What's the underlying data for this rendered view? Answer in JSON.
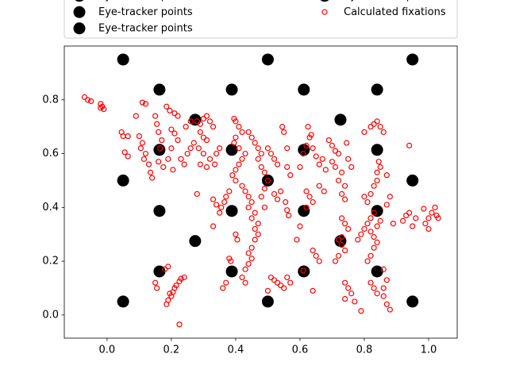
{
  "chart_data": {
    "type": "scatter",
    "xlim": [
      -0.133,
      1.089
    ],
    "ylim": [
      -0.086,
      1.0
    ],
    "xticks": [
      {
        "value": 0,
        "label": "0.0"
      },
      0.2,
      0.4,
      0.6,
      0.8,
      {
        "value": 1,
        "label": "1.0"
      }
    ],
    "yticks": [
      {
        "value": 0,
        "label": "0.0"
      },
      0.2,
      0.4,
      0.6,
      0.8
    ],
    "legend": "upper center",
    "legend_columns": 2,
    "series": [
      {
        "name": "Eye-tracker points",
        "color": "#000000",
        "filled": true,
        "x": [
          0.05,
          0.5,
          0.95,
          0.05,
          0.5,
          0.95,
          0.05,
          0.5,
          0.95
        ],
        "y": [
          0.95,
          0.95,
          0.95,
          0.5,
          0.5,
          0.5,
          0.05,
          0.05,
          0.05
        ]
      },
      {
        "name": "Eye-tracker points",
        "color": "#000000",
        "filled": true,
        "x": [
          0.163,
          0.388,
          0.612,
          0.84,
          0.163,
          0.388,
          0.612,
          0.84
        ],
        "y": [
          0.838,
          0.838,
          0.838,
          0.838,
          0.162,
          0.162,
          0.162,
          0.162
        ]
      },
      {
        "name": "Eye-tracker points",
        "color": "#000000",
        "filled": true,
        "x": [
          0.163,
          0.388,
          0.612,
          0.84,
          0.163,
          0.388,
          0.612,
          0.84
        ],
        "y": [
          0.614,
          0.614,
          0.614,
          0.614,
          0.387,
          0.387,
          0.387,
          0.387
        ]
      },
      {
        "name": "Eye-tracker points",
        "color": "#000000",
        "filled": true,
        "x": [
          0.274,
          0.726,
          0.274,
          0.726
        ],
        "y": [
          0.726,
          0.726,
          0.275,
          0.275
        ]
      },
      {
        "name": "Calculated fixations",
        "color": "#ff0000",
        "filled": false,
        "x": [
          -0.07,
          -0.06,
          -0.05,
          -0.02,
          -0.015,
          -0.01,
          -0.02,
          0.045,
          0.05,
          0.065,
          0.055,
          0.065,
          0.09,
          0.11,
          0.12,
          0.1,
          0.11,
          0.105,
          0.12,
          0.115,
          0.13,
          0.135,
          0.14,
          0.15,
          0.155,
          0.16,
          0.17,
          0.165,
          0.16,
          0.175,
          0.185,
          0.195,
          0.21,
          0.22,
          0.2,
          0.21,
          0.22,
          0.2,
          0.19,
          0.205,
          0.23,
          0.24,
          0.25,
          0.26,
          0.245,
          0.26,
          0.18,
          0.19,
          0.15,
          0.155,
          0.185,
          0.19,
          0.2,
          0.205,
          0.21,
          0.215,
          0.225,
          0.23,
          0.24,
          0.195,
          0.225,
          0.28,
          0.29,
          0.3,
          0.31,
          0.32,
          0.33,
          0.29,
          0.3,
          0.31,
          0.27,
          0.285,
          0.3,
          0.32,
          0.34,
          0.35,
          0.29,
          0.31,
          0.335,
          0.28,
          0.33,
          0.33,
          0.34,
          0.355,
          0.365,
          0.37,
          0.38,
          0.35,
          0.36,
          0.37,
          0.38,
          0.385,
          0.4,
          0.405,
          0.395,
          0.4,
          0.41,
          0.42,
          0.4,
          0.395,
          0.41,
          0.43,
          0.42,
          0.41,
          0.4,
          0.39,
          0.4,
          0.42,
          0.43,
          0.44,
          0.45,
          0.44,
          0.46,
          0.45,
          0.47,
          0.46,
          0.47,
          0.46,
          0.45,
          0.44,
          0.45,
          0.44,
          0.43,
          0.42,
          0.43,
          0.44,
          0.45,
          0.46,
          0.47,
          0.48,
          0.47,
          0.48,
          0.49,
          0.5,
          0.49,
          0.48,
          0.49,
          0.5,
          0.51,
          0.52,
          0.53,
          0.52,
          0.53,
          0.54,
          0.545,
          0.55,
          0.56,
          0.56,
          0.57,
          0.555,
          0.56,
          0.565,
          0.51,
          0.52,
          0.53,
          0.54,
          0.55,
          0.56,
          0.57,
          0.5,
          0.59,
          0.6,
          0.6,
          0.61,
          0.62,
          0.63,
          0.625,
          0.635,
          0.64,
          0.65,
          0.62,
          0.63,
          0.64,
          0.62,
          0.61,
          0.64,
          0.65,
          0.66,
          0.64,
          0.66,
          0.67,
          0.68,
          0.66,
          0.675,
          0.69,
          0.7,
          0.71,
          0.72,
          0.7,
          0.71,
          0.73,
          0.72,
          0.74,
          0.745,
          0.75,
          0.76,
          0.73,
          0.74,
          0.73,
          0.74,
          0.72,
          0.73,
          0.74,
          0.72,
          0.71,
          0.73,
          0.75,
          0.74,
          0.75,
          0.76,
          0.74,
          0.77,
          0.78,
          0.79,
          0.8,
          0.81,
          0.82,
          0.83,
          0.82,
          0.83,
          0.84,
          0.85,
          0.84,
          0.83,
          0.82,
          0.81,
          0.82,
          0.83,
          0.84,
          0.79,
          0.86,
          0.87,
          0.86,
          0.86,
          0.87,
          0.88,
          0.82,
          0.83,
          0.84,
          0.84,
          0.85,
          0.845,
          0.81,
          0.8,
          0.82,
          0.83,
          0.84,
          0.85,
          0.86,
          0.8,
          0.87,
          0.87,
          0.88,
          0.89,
          0.92,
          0.93,
          0.94,
          0.94,
          0.95,
          0.99,
          1.0,
          1.01,
          1.02,
          1.025,
          1.0,
          0.985,
          1.03,
          0.96
        ],
        "y": [
          0.81,
          0.8,
          0.795,
          0.785,
          0.775,
          0.765,
          0.77,
          0.68,
          0.665,
          0.665,
          0.605,
          0.59,
          0.74,
          0.79,
          0.785,
          0.665,
          0.64,
          0.62,
          0.6,
          0.58,
          0.56,
          0.53,
          0.51,
          0.74,
          0.71,
          0.68,
          0.65,
          0.62,
          0.57,
          0.55,
          0.775,
          0.76,
          0.75,
          0.74,
          0.69,
          0.675,
          0.65,
          0.62,
          0.58,
          0.54,
          0.58,
          0.56,
          0.6,
          0.62,
          0.7,
          0.72,
          0.17,
          0.18,
          0.12,
          0.1,
          0.04,
          0.055,
          0.07,
          0.085,
          0.1,
          0.11,
          0.125,
          0.135,
          0.14,
          0.08,
          -0.035,
          0.72,
          0.71,
          0.73,
          0.74,
          0.72,
          0.7,
          0.68,
          0.66,
          0.65,
          0.64,
          0.62,
          0.6,
          0.58,
          0.6,
          0.62,
          0.56,
          0.55,
          0.56,
          0.45,
          0.33,
          0.43,
          0.41,
          0.4,
          0.42,
          0.44,
          0.46,
          0.38,
          0.1,
          0.12,
          0.21,
          0.2,
          0.3,
          0.28,
          0.73,
          0.72,
          0.7,
          0.68,
          0.66,
          0.64,
          0.62,
          0.6,
          0.58,
          0.56,
          0.54,
          0.52,
          0.5,
          0.48,
          0.46,
          0.44,
          0.42,
          0.4,
          0.38,
          0.36,
          0.34,
          0.32,
          0.3,
          0.28,
          0.25,
          0.23,
          0.21,
          0.19,
          0.17,
          0.14,
          0.12,
          0.68,
          0.66,
          0.64,
          0.62,
          0.6,
          0.58,
          0.55,
          0.53,
          0.5,
          0.47,
          0.44,
          0.4,
          0.62,
          0.6,
          0.58,
          0.56,
          0.45,
          0.43,
          0.46,
          0.7,
          0.68,
          0.62,
          0.55,
          0.52,
          0.42,
          0.39,
          0.37,
          0.14,
          0.13,
          0.12,
          0.11,
          0.1,
          0.14,
          0.12,
          0.09,
          0.28,
          0.33,
          0.55,
          0.6,
          0.63,
          0.66,
          0.7,
          0.67,
          0.62,
          0.59,
          0.46,
          0.44,
          0.42,
          0.4,
          0.165,
          0.24,
          0.22,
          0.2,
          0.09,
          0.56,
          0.58,
          0.54,
          0.48,
          0.46,
          0.65,
          0.63,
          0.61,
          0.6,
          0.57,
          0.55,
          0.53,
          0.5,
          0.48,
          0.64,
          0.58,
          0.55,
          0.45,
          0.43,
          0.36,
          0.34,
          0.28,
          0.26,
          0.24,
          0.22,
          0.2,
          0.29,
          0.32,
          0.12,
          0.1,
          0.08,
          0.06,
          0.05,
          0.28,
          0.3,
          0.32,
          0.34,
          0.36,
          0.38,
          0.31,
          0.29,
          0.33,
          0.35,
          0.27,
          0.25,
          0.22,
          0.2,
          0.12,
          0.1,
          0.08,
          0.015,
          0.17,
          0.13,
          0.1,
          0.07,
          0.04,
          0.02,
          0.45,
          0.48,
          0.5,
          0.53,
          0.55,
          0.57,
          0.42,
          0.44,
          0.7,
          0.71,
          0.72,
          0.7,
          0.68,
          0.68,
          0.52,
          0.41,
          0.44,
          0.34,
          0.35,
          0.37,
          0.38,
          0.63,
          0.33,
          0.34,
          0.36,
          0.38,
          0.4,
          0.37,
          0.32,
          0.395,
          0.36,
          0.36
        ]
      }
    ]
  }
}
